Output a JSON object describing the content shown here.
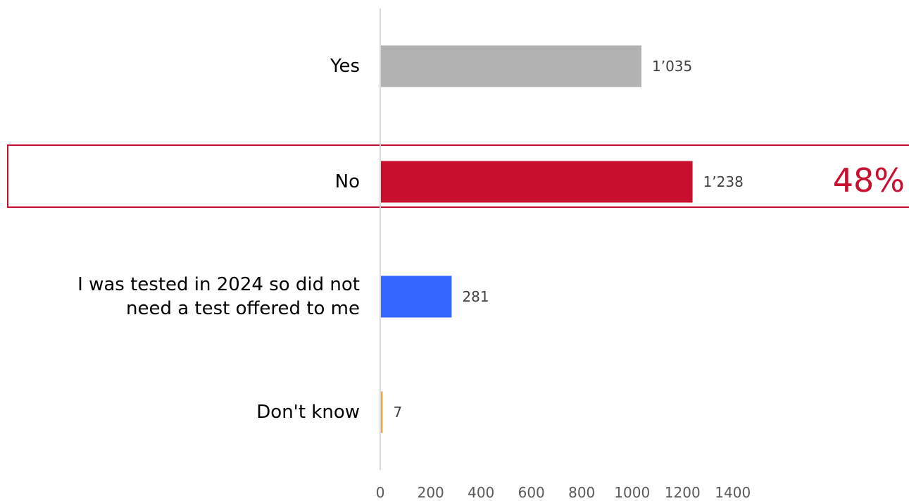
{
  "chart_data": {
    "type": "bar",
    "orientation": "horizontal",
    "categories": [
      "Yes",
      "No",
      "I was tested in 2024 so did not\nneed a test offered to me",
      "Don't know"
    ],
    "values": [
      1035,
      1238,
      281,
      7
    ],
    "value_labels": [
      "1’035",
      "1’238",
      "281",
      "7"
    ],
    "bar_colors": [
      "#b2b2b2",
      "#c8102e",
      "#3366ff",
      "#f0a830"
    ],
    "xlim": [
      0,
      1400
    ],
    "x_ticks": [
      "0",
      "200",
      "400",
      "600",
      "800",
      "1000",
      "1200",
      "1400"
    ],
    "grid": false,
    "legend": "none",
    "highlight": {
      "category": "No",
      "text": "48%",
      "color": "#c8102e"
    }
  }
}
